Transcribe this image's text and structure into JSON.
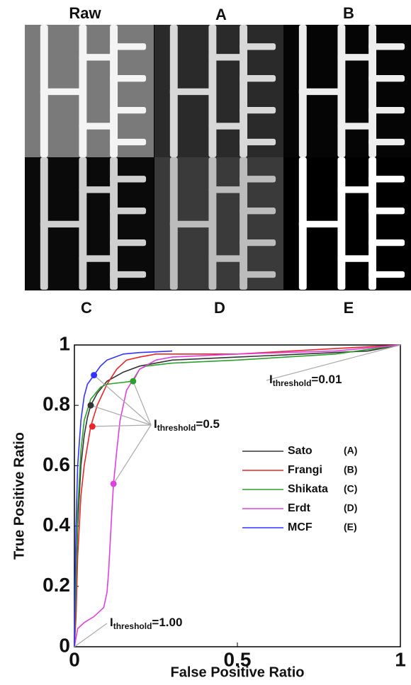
{
  "panel_labels": [
    "Raw",
    "A",
    "B",
    "C",
    "D",
    "E"
  ],
  "chart_data": {
    "type": "line",
    "xlabel": "False Positive Ratio",
    "ylabel": "True Positive Ratio",
    "xlim": [
      0,
      1
    ],
    "ylim": [
      0,
      1
    ],
    "xticks": [
      0,
      0.5,
      1
    ],
    "yticks": [
      0,
      0.2,
      0.4,
      0.6,
      0.8,
      1
    ],
    "series": [
      {
        "name": "Sato",
        "tag": "(A)",
        "color": "#333333",
        "x": [
          0,
          0.005,
          0.01,
          0.02,
          0.03,
          0.04,
          0.05,
          0.07,
          0.1,
          0.15,
          0.2,
          0.3,
          0.5,
          0.7,
          0.9,
          1
        ],
        "values": [
          0,
          0.2,
          0.4,
          0.6,
          0.7,
          0.76,
          0.8,
          0.84,
          0.88,
          0.91,
          0.93,
          0.95,
          0.96,
          0.97,
          0.98,
          1
        ],
        "highlight": {
          "x": 0.05,
          "y": 0.8
        }
      },
      {
        "name": "Frangi",
        "tag": "(B)",
        "color": "#e8262a",
        "x": [
          0,
          0.005,
          0.01,
          0.02,
          0.03,
          0.05,
          0.07,
          0.1,
          0.13,
          0.16,
          0.2,
          0.25,
          0.5,
          1
        ],
        "values": [
          0,
          0.1,
          0.3,
          0.5,
          0.6,
          0.73,
          0.8,
          0.87,
          0.92,
          0.95,
          0.96,
          0.97,
          0.97,
          1
        ],
        "highlight": {
          "x": 0.055,
          "y": 0.73
        }
      },
      {
        "name": "Shikata",
        "tag": "(C)",
        "color": "#2ca02c",
        "x": [
          0,
          0.005,
          0.01,
          0.02,
          0.03,
          0.05,
          0.08,
          0.1,
          0.14,
          0.18,
          0.2,
          0.22,
          0.3,
          0.5,
          0.8,
          1
        ],
        "values": [
          0,
          0.2,
          0.45,
          0.65,
          0.75,
          0.82,
          0.86,
          0.87,
          0.875,
          0.88,
          0.92,
          0.93,
          0.94,
          0.95,
          0.97,
          1
        ],
        "highlight": {
          "x": 0.18,
          "y": 0.88
        }
      },
      {
        "name": "Erdt",
        "tag": "(D)",
        "color": "#e040e0",
        "x": [
          0,
          0.005,
          0.01,
          0.03,
          0.06,
          0.09,
          0.1,
          0.105,
          0.11,
          0.115,
          0.12,
          0.13,
          0.14,
          0.16,
          0.2,
          0.25,
          0.3,
          0.5,
          0.8,
          1
        ],
        "values": [
          0,
          0.03,
          0.06,
          0.08,
          0.1,
          0.13,
          0.18,
          0.25,
          0.35,
          0.45,
          0.54,
          0.65,
          0.75,
          0.85,
          0.92,
          0.95,
          0.96,
          0.97,
          0.98,
          1
        ],
        "highlight": {
          "x": 0.12,
          "y": 0.54
        }
      },
      {
        "name": "MCF",
        "tag": "(E)",
        "color": "#3333ff",
        "x": [
          0,
          0.002,
          0.005,
          0.01,
          0.02,
          0.03,
          0.04,
          0.06,
          0.08,
          0.1,
          0.15,
          0.2,
          0.3
        ],
        "values": [
          0,
          0.2,
          0.4,
          0.6,
          0.75,
          0.83,
          0.87,
          0.9,
          0.93,
          0.95,
          0.97,
          0.975,
          0.98
        ],
        "highlight": {
          "x": 0.06,
          "y": 0.9
        }
      }
    ],
    "annotations": [
      {
        "base": "I",
        "sub": "threshold",
        "rest": "=0.01"
      },
      {
        "base": "I",
        "sub": "threshold",
        "rest": "=0.5"
      },
      {
        "base": "I",
        "sub": "threshold",
        "rest": "=1.00"
      }
    ]
  }
}
